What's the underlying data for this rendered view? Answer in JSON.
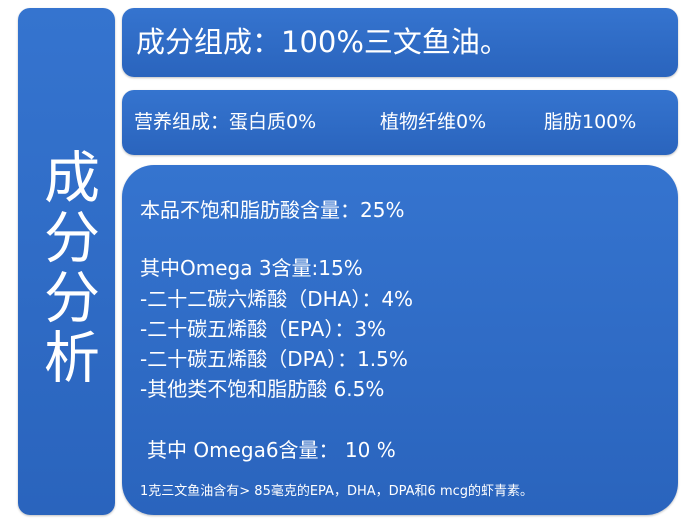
{
  "side_title": "成分分析",
  "header": {
    "title": "成分组成：100%三文鱼油。"
  },
  "nutrition": {
    "items": [
      "营养组成：蛋白质0%",
      "植物纤维0%",
      "脂肪100%"
    ]
  },
  "details": {
    "lines": [
      "本品不饱和脂肪酸含量：25%",
      "其中Omega 3含量:15%",
      "-二十二碳六烯酸（DHA）：4%",
      "-二十碳五烯酸（EPA）：3%",
      "-二十碳五烯酸（DPA）：1.5%",
      "-其他类不饱和脂肪酸 6.5%",
      "其中 Omega6含量： 10 %"
    ],
    "footnote": "1克三文鱼油含有> 85毫克的EPA，DHA，DPA和6 mcg的虾青素。"
  }
}
